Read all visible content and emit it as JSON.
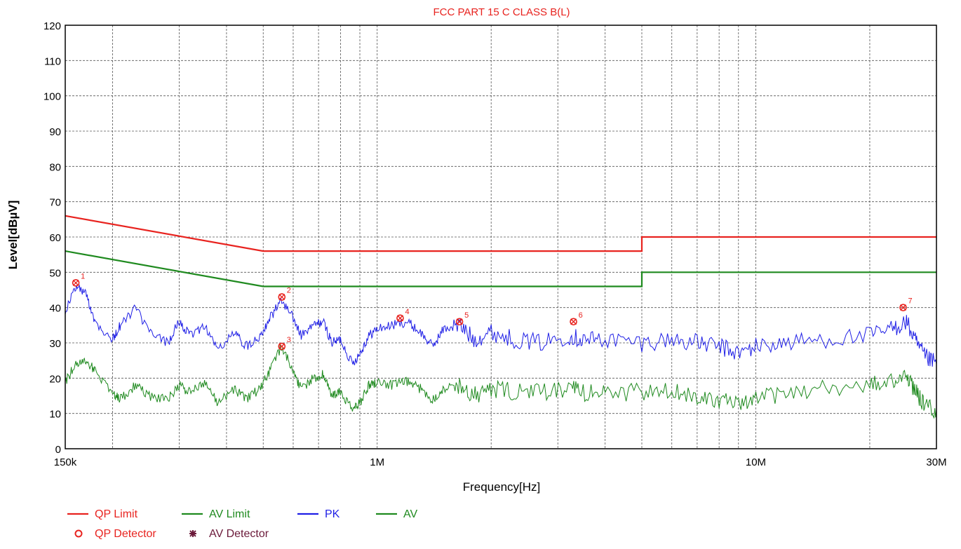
{
  "chart_data": {
    "type": "line",
    "title": "FCC PART 15 C CLASS B(L)",
    "xlabel": "Frequency[Hz]",
    "ylabel": "Level[dBµV]",
    "x_scale": "log",
    "xlim": [
      150000,
      30000000
    ],
    "ylim": [
      0,
      120
    ],
    "x_ticks": [
      {
        "value": 150000,
        "label": "150k"
      },
      {
        "value": 1000000,
        "label": "1M"
      },
      {
        "value": 10000000,
        "label": "10M"
      },
      {
        "value": 30000000,
        "label": "30M"
      }
    ],
    "y_ticks": [
      0,
      10,
      20,
      30,
      40,
      50,
      60,
      70,
      80,
      90,
      100,
      110,
      120
    ],
    "grid": true,
    "legend_position": "bottom-left",
    "colors": {
      "red": "#e8231f",
      "green": "#1f8a1f",
      "blue": "#1f1fe6"
    },
    "series": [
      {
        "name": "QP Limit",
        "color": "#e8231f",
        "x": [
          150000,
          500000,
          5000000,
          5000000,
          30000000
        ],
        "y": [
          66,
          56,
          56,
          60,
          60
        ]
      },
      {
        "name": "AV Limit",
        "color": "#1f8a1f",
        "x": [
          150000,
          500000,
          5000000,
          5000000,
          30000000
        ],
        "y": [
          56,
          46,
          46,
          50,
          50
        ]
      },
      {
        "name": "PK",
        "color": "#1f1fe6",
        "x": [
          150000,
          160000,
          170000,
          180000,
          200000,
          210000,
          230000,
          250000,
          280000,
          300000,
          320000,
          350000,
          380000,
          420000,
          450000,
          490000,
          520000,
          560000,
          600000,
          630000,
          680000,
          720000,
          760000,
          800000,
          860000,
          900000,
          950000,
          1000000,
          1100000,
          1200000,
          1300000,
          1400000,
          1500000,
          1650000,
          1800000,
          2000000,
          2300000,
          2700000,
          3200000,
          3500000,
          4000000,
          5000000,
          6000000,
          7000000,
          8000000,
          9000000,
          10000000,
          12000000,
          15000000,
          20000000,
          23000000,
          25000000,
          26500000,
          28000000,
          30000000
        ],
        "y": [
          39,
          46,
          44,
          36,
          31,
          35,
          40,
          33,
          30,
          36,
          32,
          35,
          28,
          33,
          29,
          32,
          37,
          42,
          37,
          32,
          35,
          36,
          30,
          31,
          24,
          27,
          32,
          34,
          35,
          36,
          33,
          29,
          34,
          35,
          31,
          33,
          31,
          30,
          32,
          31,
          31,
          30,
          31,
          30,
          29,
          27,
          29,
          30,
          31,
          32,
          34,
          36,
          30,
          26,
          24
        ]
      },
      {
        "name": "AV",
        "color": "#1f8a1f",
        "x": [
          150000,
          160000,
          170000,
          180000,
          200000,
          210000,
          230000,
          250000,
          280000,
          300000,
          320000,
          350000,
          380000,
          420000,
          450000,
          490000,
          520000,
          560000,
          600000,
          630000,
          680000,
          720000,
          760000,
          800000,
          860000,
          900000,
          950000,
          1000000,
          1100000,
          1200000,
          1300000,
          1400000,
          1500000,
          1650000,
          1800000,
          2000000,
          2300000,
          2700000,
          3200000,
          3500000,
          4000000,
          5000000,
          6000000,
          7000000,
          8000000,
          9000000,
          10000000,
          12000000,
          15000000,
          20000000,
          23000000,
          25000000,
          26500000,
          28000000,
          30000000
        ],
        "y": [
          19,
          24,
          25,
          22,
          16,
          14,
          18,
          15,
          14,
          18,
          16,
          19,
          13,
          17,
          14,
          17,
          22,
          29,
          22,
          17,
          20,
          21,
          15,
          16,
          11,
          13,
          18,
          19,
          18,
          19,
          17,
          14,
          17,
          18,
          15,
          17,
          16,
          16,
          17,
          16,
          16,
          16,
          16,
          15,
          14,
          12,
          14,
          16,
          17,
          18,
          19,
          21,
          16,
          12,
          11
        ]
      }
    ],
    "markers": [
      {
        "label": "1",
        "x": 160000,
        "y": 47
      },
      {
        "label": "2",
        "x": 560000,
        "y": 43
      },
      {
        "label": "3",
        "x": 560000,
        "y": 29
      },
      {
        "label": "4",
        "x": 1150000,
        "y": 37
      },
      {
        "label": "5",
        "x": 1650000,
        "y": 36
      },
      {
        "label": "6",
        "x": 3300000,
        "y": 36
      },
      {
        "label": "7",
        "x": 24500000,
        "y": 40
      }
    ],
    "legend": [
      {
        "label": "QP Limit",
        "symbol": "line",
        "color": "#e8231f"
      },
      {
        "label": "AV Limit",
        "symbol": "line",
        "color": "#1f8a1f"
      },
      {
        "label": "PK",
        "symbol": "line",
        "color": "#1f1fe6"
      },
      {
        "label": "AV",
        "symbol": "line",
        "color": "#1f8a1f"
      },
      {
        "label": "QP Detector",
        "symbol": "circle",
        "color": "#e8231f"
      },
      {
        "label": "AV Detector",
        "symbol": "asterisk",
        "color": "#6b1a3a"
      }
    ]
  }
}
